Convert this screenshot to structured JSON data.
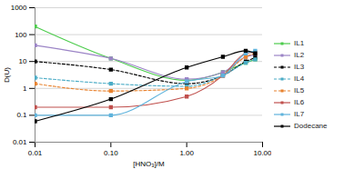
{
  "chart_data": {
    "type": "line",
    "x_label": "[HNO₃]/M",
    "y_label": "D(U)",
    "log": true,
    "grid": true,
    "legend": "right",
    "marker": "square",
    "x": [
      0.01,
      0.1,
      1,
      3,
      6,
      8
    ],
    "xlim": [
      0.01,
      10
    ],
    "xticks": [
      {
        "value": 0.01,
        "label": "0.01"
      },
      {
        "value": 0.1,
        "label": "0.10"
      },
      {
        "value": 1,
        "label": "1.00"
      },
      {
        "value": 10,
        "label": "10.00"
      }
    ],
    "ylim": [
      0.01,
      1000
    ],
    "yticks": [
      0.01,
      0.1,
      1,
      10,
      100,
      1000
    ],
    "series": [
      {
        "name": "IL1",
        "color": "#4ccc4c",
        "line_style": "solid",
        "values": [
          200,
          13,
          2,
          4,
          9,
          12
        ]
      },
      {
        "name": "IL2",
        "color": "#9b84c6",
        "line_style": "solid",
        "values": [
          40,
          13,
          2.2,
          4,
          15,
          18
        ]
      },
      {
        "name": "IL3",
        "color": "#000000",
        "line_style": "dashed",
        "values": [
          10,
          5,
          1.5,
          3,
          10,
          14
        ]
      },
      {
        "name": "IL4",
        "color": "#4bacc6",
        "line_style": "dashed",
        "values": [
          2.5,
          1.5,
          1.2,
          3,
          9,
          12
        ]
      },
      {
        "name": "IL5",
        "color": "#e8822e",
        "line_style": "dashed",
        "values": [
          1.5,
          0.8,
          1,
          3,
          15,
          20
        ]
      },
      {
        "name": "IL6",
        "color": "#c0504d",
        "line_style": "solid",
        "values": [
          0.2,
          0.2,
          0.5,
          3,
          20,
          22
        ]
      },
      {
        "name": "IL7",
        "color": "#5fb3dc",
        "line_style": "solid",
        "values": [
          0.1,
          0.1,
          1.8,
          3,
          20,
          25
        ]
      },
      {
        "name": "Dodecane",
        "color": "#000000",
        "line_style": "solid",
        "values": [
          0.06,
          0.4,
          6,
          15,
          25,
          20
        ]
      }
    ]
  }
}
